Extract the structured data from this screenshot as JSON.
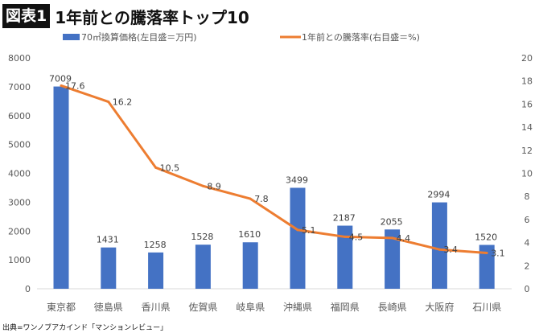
{
  "title_badge": "図表1",
  "title": "1年前との騰落率トップ10",
  "source": "出典=ワンノブアカインド「マンションレビュー」",
  "chart_data": {
    "type": "bar+line",
    "categories": [
      "東京都",
      "徳島県",
      "香川県",
      "佐賀県",
      "岐阜県",
      "沖縄県",
      "福岡県",
      "長崎県",
      "大阪府",
      "石川県"
    ],
    "series": [
      {
        "name": "70㎡換算価格(左目盛＝万円)",
        "type": "bar",
        "axis": "left",
        "color": "#4472C4",
        "values": [
          7009,
          1431,
          1258,
          1528,
          1610,
          3499,
          2187,
          2055,
          2994,
          1520
        ]
      },
      {
        "name": "1年前との騰落率(右目盛＝%)",
        "type": "line",
        "axis": "right",
        "color": "#ED7D31",
        "values": [
          17.6,
          16.2,
          10.5,
          8.9,
          7.8,
          5.1,
          4.5,
          4.4,
          3.4,
          3.1
        ]
      }
    ],
    "left_axis": {
      "range": [
        0,
        8000
      ],
      "ticks": [
        0,
        1000,
        2000,
        3000,
        4000,
        5000,
        6000,
        7000,
        8000
      ]
    },
    "right_axis": {
      "range": [
        0,
        20
      ],
      "ticks": [
        0,
        2,
        4,
        6,
        8,
        10,
        12,
        14,
        16,
        18,
        20
      ]
    },
    "grid": false,
    "legend": "top"
  }
}
